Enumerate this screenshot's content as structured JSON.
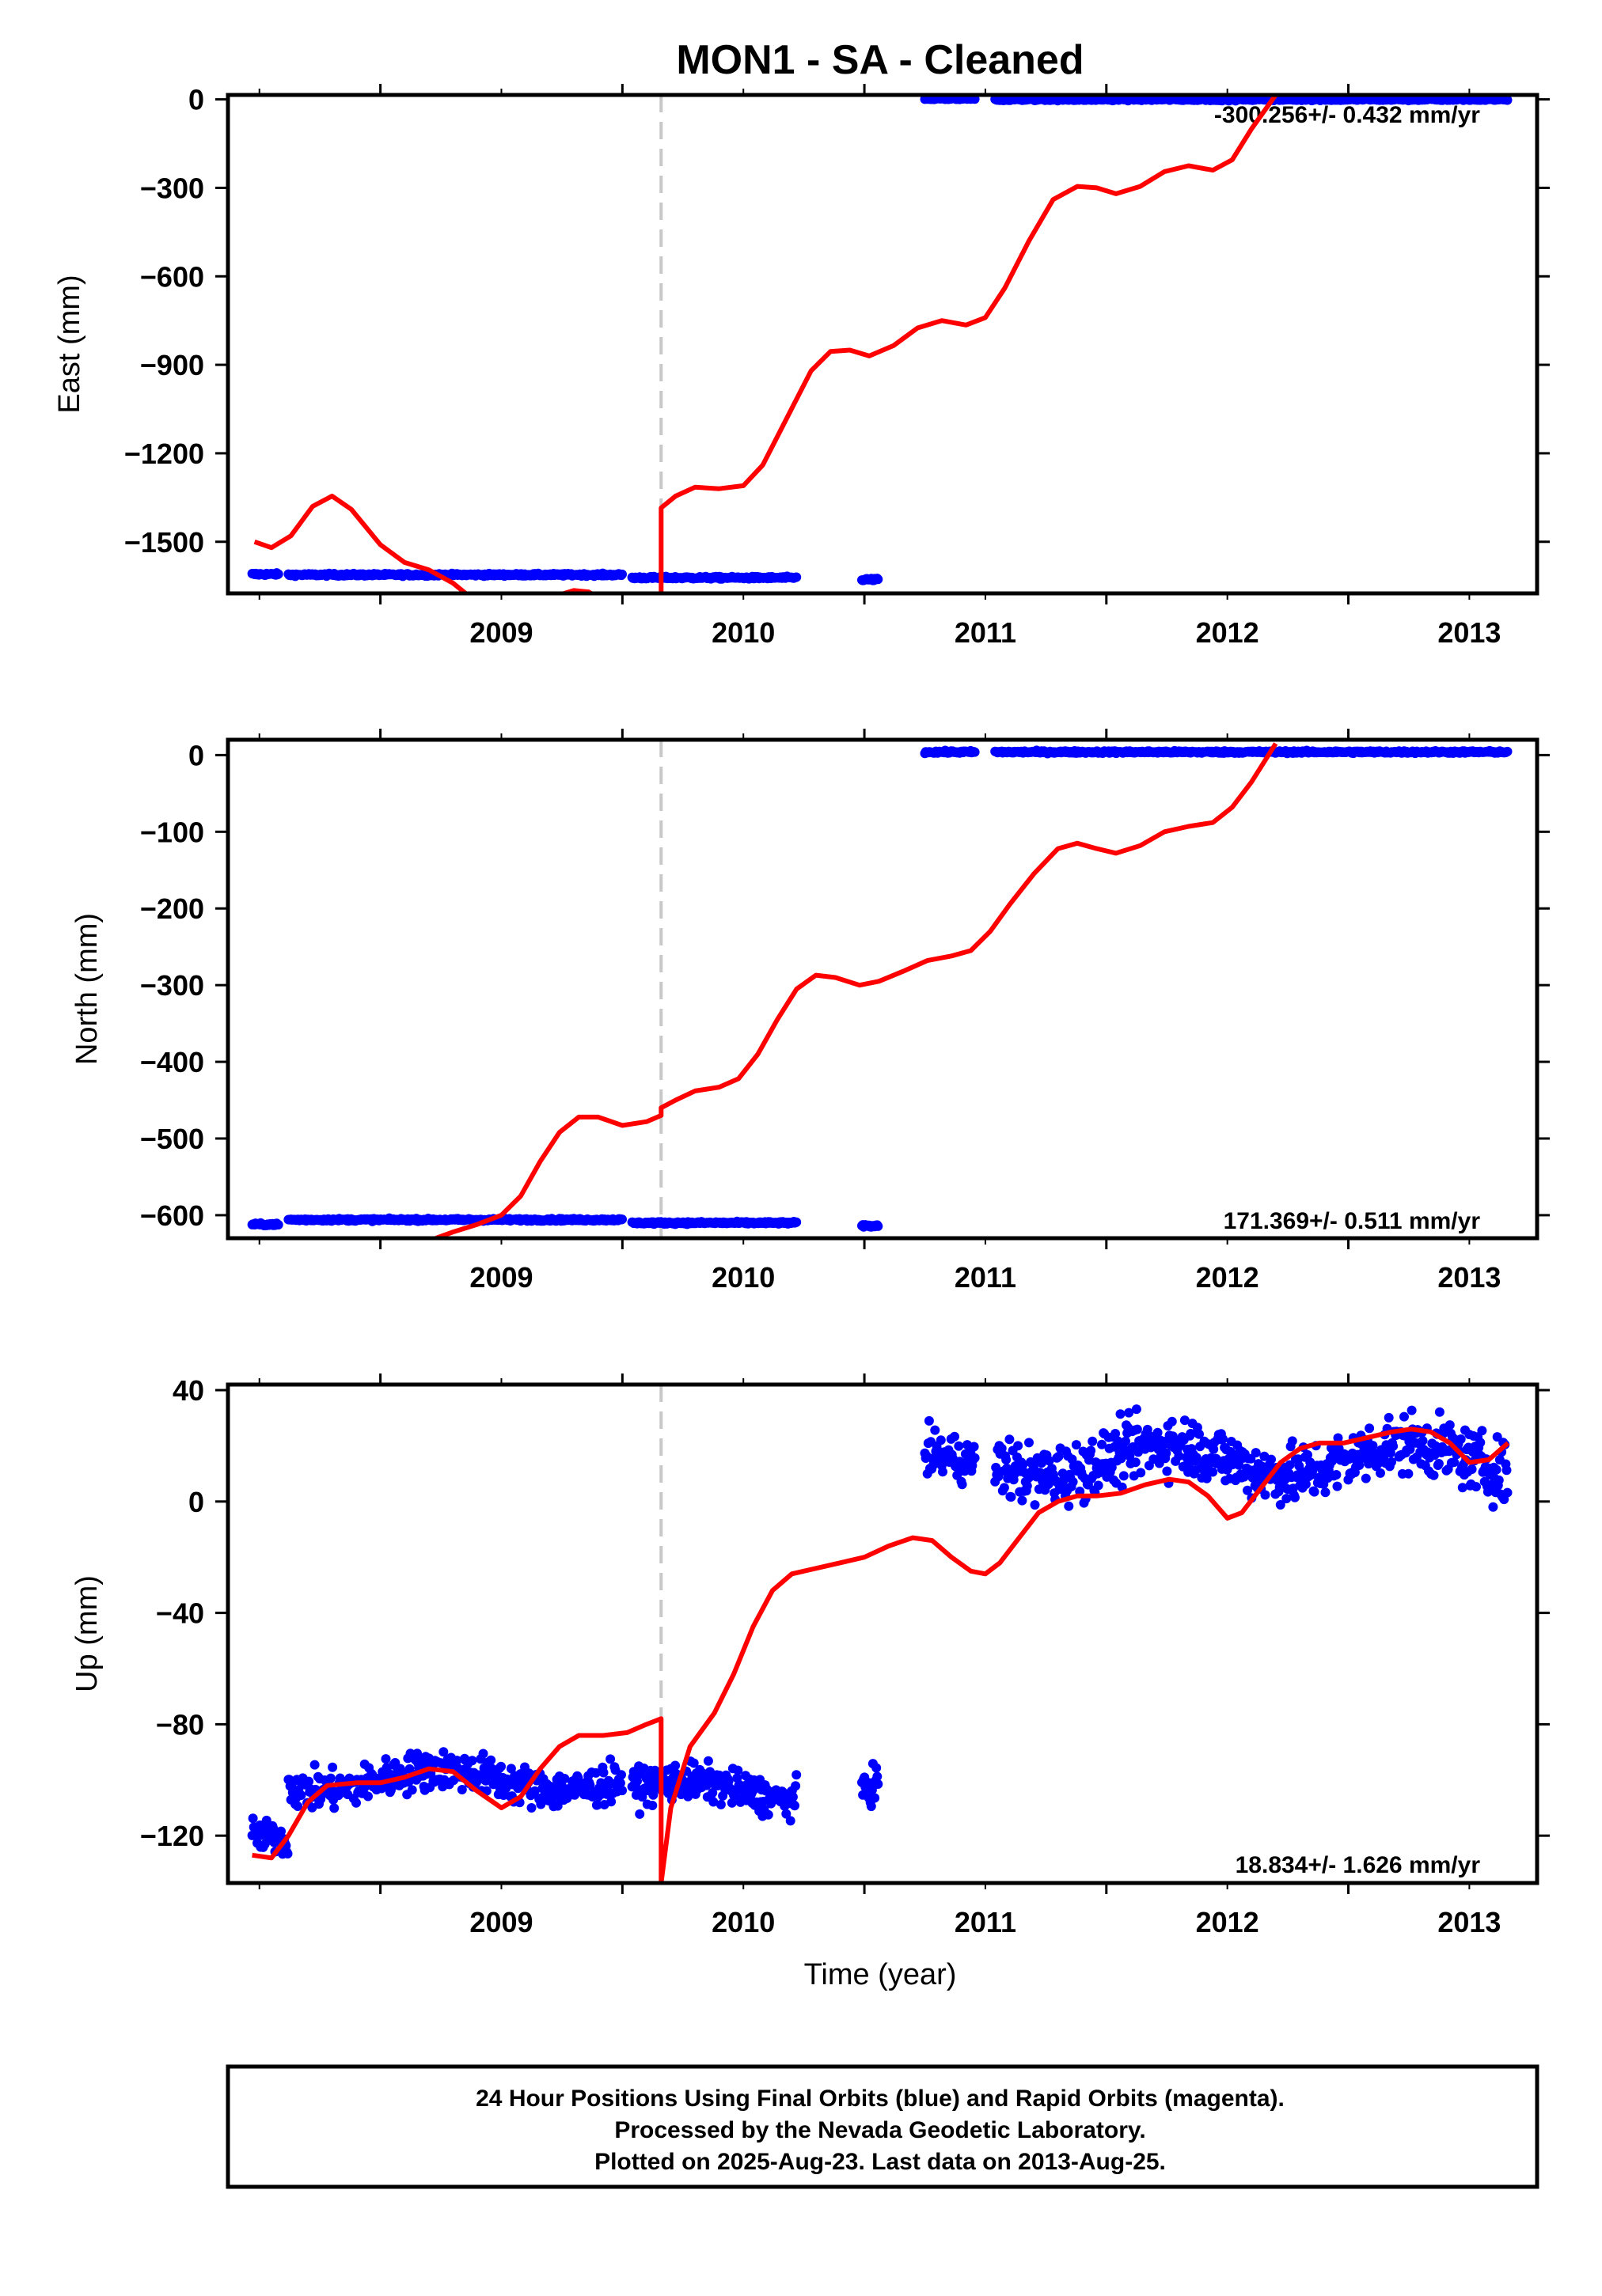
{
  "title": "MON1  - SA - Cleaned",
  "xlabel": "Time (year)",
  "x_ticks": [
    "2009",
    "2010",
    "2011",
    "2012",
    "2013"
  ],
  "footer": {
    "line1": "24 Hour Positions Using Final Orbits (blue) and Rapid Orbits (magenta).",
    "line2": "Processed by the Nevada Geodetic Laboratory.",
    "line3": "Plotted on 2025-Aug-23. Last data on 2013-Aug-25."
  },
  "colors": {
    "data": "#0000ff",
    "model": "#ff0000",
    "break_line": "#c8c8c8",
    "frame": "#000000"
  },
  "chart_data": [
    {
      "type": "scatter",
      "ylabel": "East (mm)",
      "rate_text": "-300.256+/- 0.432 mm/yr",
      "xlim": [
        2008.37,
        2013.78
      ],
      "ylim": [
        -1675,
        15
      ],
      "y_ticks": [
        0,
        -300,
        -600,
        -900,
        -1200,
        -1500
      ],
      "equipment_break": 2010.16,
      "series": [
        {
          "segments": [
            {
              "x0": 2008.47,
              "x1": 2008.58,
              "y": -1610
            },
            {
              "x0": 2008.62,
              "x1": 2010.0,
              "y": -1612
            },
            {
              "x0": 2010.04,
              "x1": 2010.72,
              "y": -1622
            },
            {
              "x0": 2010.99,
              "x1": 2011.06,
              "y": -1628
            },
            {
              "x0": 2011.25,
              "x1": 2011.46,
              "y": 2
            },
            {
              "x0": 2011.54,
              "x1": 2013.66,
              "y": 0
            }
          ]
        },
        {
          "model": [
            [
              2008.48,
              -1500
            ],
            [
              2008.55,
              -1520
            ],
            [
              2008.63,
              -1480
            ],
            [
              2008.72,
              -1380
            ],
            [
              2008.8,
              -1345
            ],
            [
              2008.88,
              -1390
            ],
            [
              2009.0,
              -1510
            ],
            [
              2009.1,
              -1570
            ],
            [
              2009.2,
              -1595
            ],
            [
              2009.3,
              -1640
            ],
            [
              2009.36,
              -1680
            ],
            null,
            [
              2009.74,
              -1680
            ],
            [
              2009.8,
              -1665
            ],
            [
              2009.86,
              -1670
            ],
            [
              2009.88,
              -1680
            ],
            null,
            [
              2010.16,
              -1680
            ],
            [
              2010.16,
              -1385
            ],
            [
              2010.22,
              -1345
            ],
            [
              2010.3,
              -1315
            ],
            [
              2010.4,
              -1320
            ],
            [
              2010.5,
              -1310
            ],
            [
              2010.58,
              -1240
            ],
            [
              2010.68,
              -1080
            ],
            [
              2010.78,
              -920
            ],
            [
              2010.86,
              -855
            ],
            [
              2010.94,
              -850
            ],
            [
              2011.02,
              -870
            ],
            [
              2011.12,
              -835
            ],
            [
              2011.22,
              -775
            ],
            [
              2011.32,
              -750
            ],
            [
              2011.42,
              -765
            ],
            [
              2011.5,
              -740
            ],
            [
              2011.58,
              -640
            ],
            [
              2011.68,
              -480
            ],
            [
              2011.78,
              -340
            ],
            [
              2011.88,
              -295
            ],
            [
              2011.96,
              -300
            ],
            [
              2012.04,
              -320
            ],
            [
              2012.14,
              -295
            ],
            [
              2012.24,
              -245
            ],
            [
              2012.34,
              -225
            ],
            [
              2012.44,
              -240
            ],
            [
              2012.52,
              -205
            ],
            [
              2012.6,
              -100
            ],
            [
              2012.7,
              15
            ]
          ]
        }
      ]
    },
    {
      "type": "scatter",
      "ylabel": "North (mm)",
      "rate_text": "171.369+/- 0.511 mm/yr",
      "xlim": [
        2008.37,
        2013.78
      ],
      "ylim": [
        -630,
        20
      ],
      "y_ticks": [
        0,
        -100,
        -200,
        -300,
        -400,
        -500,
        -600
      ],
      "equipment_break": 2010.16,
      "series": [
        {
          "segments": [
            {
              "x0": 2008.47,
              "x1": 2008.58,
              "y": -612
            },
            {
              "x0": 2008.62,
              "x1": 2010.0,
              "y": -606
            },
            {
              "x0": 2010.04,
              "x1": 2010.72,
              "y": -610
            },
            {
              "x0": 2010.99,
              "x1": 2011.06,
              "y": -614
            },
            {
              "x0": 2011.25,
              "x1": 2011.46,
              "y": 4
            },
            {
              "x0": 2011.54,
              "x1": 2013.66,
              "y": 4
            }
          ]
        },
        {
          "model": [
            [
              2009.23,
              -630
            ],
            [
              2009.3,
              -622
            ],
            [
              2009.4,
              -612
            ],
            [
              2009.5,
              -600
            ],
            [
              2009.58,
              -575
            ],
            [
              2009.66,
              -530
            ],
            [
              2009.74,
              -492
            ],
            [
              2009.82,
              -472
            ],
            [
              2009.9,
              -472
            ],
            [
              2010.0,
              -483
            ],
            [
              2010.1,
              -478
            ],
            [
              2010.16,
              -470
            ],
            [
              2010.16,
              -460
            ],
            [
              2010.22,
              -450
            ],
            [
              2010.3,
              -438
            ],
            [
              2010.4,
              -433
            ],
            [
              2010.48,
              -422
            ],
            [
              2010.56,
              -390
            ],
            [
              2010.64,
              -345
            ],
            [
              2010.72,
              -305
            ],
            [
              2010.8,
              -287
            ],
            [
              2010.88,
              -290
            ],
            [
              2010.98,
              -300
            ],
            [
              2011.06,
              -295
            ],
            [
              2011.16,
              -282
            ],
            [
              2011.26,
              -268
            ],
            [
              2011.36,
              -262
            ],
            [
              2011.44,
              -255
            ],
            [
              2011.52,
              -230
            ],
            [
              2011.6,
              -195
            ],
            [
              2011.7,
              -155
            ],
            [
              2011.8,
              -122
            ],
            [
              2011.88,
              -115
            ],
            [
              2011.96,
              -122
            ],
            [
              2012.04,
              -128
            ],
            [
              2012.14,
              -118
            ],
            [
              2012.24,
              -100
            ],
            [
              2012.34,
              -93
            ],
            [
              2012.44,
              -88
            ],
            [
              2012.52,
              -68
            ],
            [
              2012.6,
              -35
            ],
            [
              2012.7,
              15
            ]
          ]
        }
      ]
    },
    {
      "type": "scatter",
      "ylabel": "Up (mm)",
      "rate_text": "18.834+/- 1.626 mm/yr",
      "xlim": [
        2008.37,
        2013.78
      ],
      "ylim": [
        -137,
        42
      ],
      "y_ticks": [
        40,
        0,
        -40,
        -80,
        -120
      ],
      "equipment_break": 2010.16,
      "series": [
        {
          "clusters": [
            {
              "x0": 2008.47,
              "x1": 2008.62,
              "y0": -132,
              "y1": -108
            },
            {
              "x0": 2008.62,
              "x1": 2010.0,
              "y0": -115,
              "y1": -85
            },
            {
              "x0": 2010.04,
              "x1": 2010.72,
              "y0": -118,
              "y1": -90
            },
            {
              "x0": 2010.99,
              "x1": 2011.06,
              "y0": -117,
              "y1": -88
            },
            {
              "x0": 2011.25,
              "x1": 2011.46,
              "y0": -5,
              "y1": 30
            },
            {
              "x0": 2011.54,
              "x1": 2013.66,
              "y0": -8,
              "y1": 38
            }
          ]
        },
        {
          "model": [
            [
              2008.47,
              -127
            ],
            [
              2008.55,
              -128
            ],
            [
              2008.62,
              -120
            ],
            [
              2008.7,
              -108
            ],
            [
              2008.78,
              -102
            ],
            [
              2008.9,
              -101
            ],
            [
              2009.0,
              -101
            ],
            [
              2009.1,
              -99
            ],
            [
              2009.2,
              -96
            ],
            [
              2009.3,
              -97
            ],
            [
              2009.4,
              -104
            ],
            [
              2009.5,
              -110
            ],
            [
              2009.58,
              -106
            ],
            [
              2009.66,
              -96
            ],
            [
              2009.74,
              -88
            ],
            [
              2009.82,
              -84
            ],
            [
              2009.92,
              -84
            ],
            [
              2010.02,
              -83
            ],
            [
              2010.1,
              -80
            ],
            [
              2010.16,
              -78
            ],
            [
              2010.16,
              -137
            ],
            [
              2010.2,
              -110
            ],
            [
              2010.28,
              -88
            ],
            [
              2010.38,
              -76
            ],
            [
              2010.46,
              -62
            ],
            [
              2010.54,
              -45
            ],
            [
              2010.62,
              -32
            ],
            [
              2010.7,
              -26
            ],
            [
              2010.8,
              -24
            ],
            [
              2010.9,
              -22
            ],
            [
              2011.0,
              -20
            ],
            [
              2011.1,
              -16
            ],
            [
              2011.2,
              -13
            ],
            [
              2011.28,
              -14
            ],
            [
              2011.36,
              -20
            ],
            [
              2011.44,
              -25
            ],
            [
              2011.5,
              -26
            ],
            [
              2011.56,
              -22
            ],
            [
              2011.64,
              -13
            ],
            [
              2011.72,
              -4
            ],
            [
              2011.8,
              0
            ],
            [
              2011.88,
              2
            ],
            [
              2011.96,
              2
            ],
            [
              2012.06,
              3
            ],
            [
              2012.16,
              6
            ],
            [
              2012.26,
              8
            ],
            [
              2012.34,
              7
            ],
            [
              2012.42,
              2
            ],
            [
              2012.5,
              -6
            ],
            [
              2012.56,
              -4
            ],
            [
              2012.64,
              5
            ],
            [
              2012.72,
              14
            ],
            [
              2012.8,
              19
            ],
            [
              2012.88,
              21
            ],
            [
              2012.98,
              21
            ],
            [
              2013.08,
              23
            ],
            [
              2013.18,
              25
            ],
            [
              2013.26,
              26
            ],
            [
              2013.34,
              25
            ],
            [
              2013.42,
              21
            ],
            [
              2013.5,
              14
            ],
            [
              2013.58,
              15
            ],
            [
              2013.66,
              21
            ]
          ]
        }
      ]
    }
  ]
}
